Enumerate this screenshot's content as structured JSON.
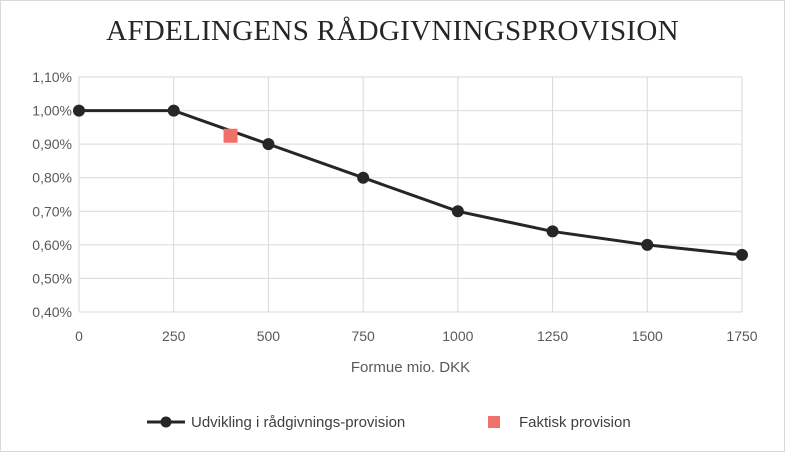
{
  "chart_data": {
    "type": "line",
    "title": "AFDELINGENS RÅDGIVNINGSPROVISION",
    "xlabel": "Formue mio. DKK",
    "ylabel": "",
    "xlim": [
      0,
      1750
    ],
    "ylim": [
      0.4,
      1.1
    ],
    "x_ticks": [
      "0",
      "250",
      "500",
      "750",
      "1000",
      "1250",
      "1500",
      "1750"
    ],
    "x_tick_values": [
      0,
      250,
      500,
      750,
      1000,
      1250,
      1500,
      1750
    ],
    "y_ticks": [
      "0,40%",
      "0,50%",
      "0,60%",
      "0,70%",
      "0,80%",
      "0,90%",
      "1,00%",
      "1,10%"
    ],
    "y_tick_values": [
      0.4,
      0.5,
      0.6,
      0.7,
      0.8,
      0.9,
      1.0,
      1.1
    ],
    "grid": true,
    "legend_position": "bottom",
    "series": [
      {
        "name": "Udvikling i rådgivnings-provision",
        "kind": "line-markers",
        "color": "#262626",
        "x": [
          0,
          250,
          500,
          750,
          1000,
          1250,
          1500,
          1750
        ],
        "y": [
          1.0,
          1.0,
          0.9,
          0.8,
          0.7,
          0.64,
          0.6,
          0.57
        ]
      },
      {
        "name": "Faktisk provision",
        "kind": "marker",
        "color": "#f0706a",
        "x": [
          400
        ],
        "y": [
          0.925
        ]
      }
    ]
  }
}
